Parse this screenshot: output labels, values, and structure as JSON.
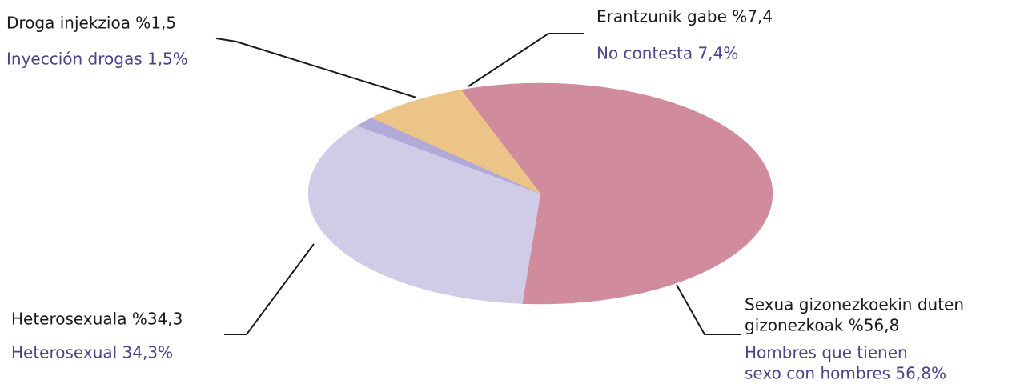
{
  "chart_data": {
    "type": "pie",
    "values": [
      56.8,
      34.3,
      1.5,
      7.4
    ],
    "colors": [
      "#d08c9c",
      "#d0cbe7",
      "#b1a9d8",
      "#ecc488"
    ],
    "labels_eu": [
      [
        "Sexua gizonezkoekin duten",
        "gizonezkoak %56,8"
      ],
      [
        "Heterosexuala %34,3"
      ],
      [
        "Droga injekzioa %1,5"
      ],
      [
        "Erantzunik gabe %7,4"
      ]
    ],
    "labels_es": [
      [
        "Hombres que tienen",
        "sexo con hombres 56,8%"
      ],
      [
        "Heterosexual 34,3%"
      ],
      [
        "Inyección drogas 1,5%"
      ],
      [
        "No contesta 7,4%"
      ]
    ]
  }
}
